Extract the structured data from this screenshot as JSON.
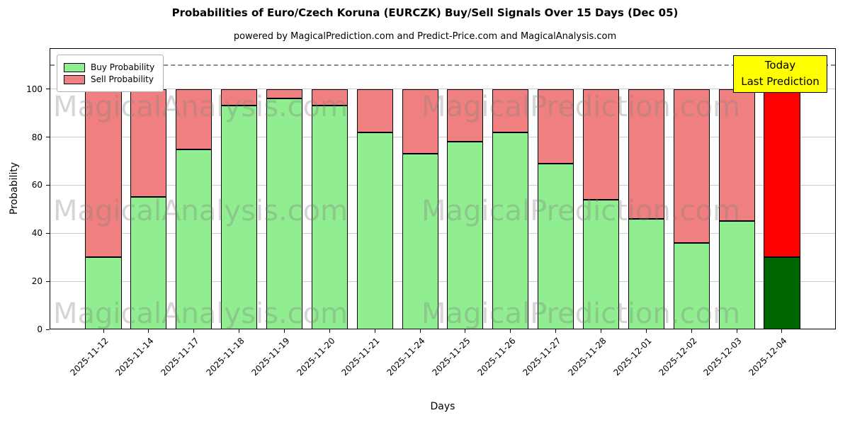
{
  "title": "Probabilities of Euro/Czech Koruna (EURCZK) Buy/Sell Signals Over 15 Days (Dec 05)",
  "subtitle": "powered by MagicalPrediction.com and Predict-Price.com and MagicalAnalysis.com",
  "legend": {
    "buy": "Buy Probability",
    "sell": "Sell Probability"
  },
  "today_box": {
    "line1": "Today",
    "line2": "Last Prediction",
    "bg": "#ffff00",
    "border": "#000000"
  },
  "watermarks": [
    "MagicalAnalysis.com",
    "MagicalPrediction.com"
  ],
  "chart_data": {
    "type": "bar",
    "stacked": true,
    "title": "Probabilities of Euro/Czech Koruna (EURCZK) Buy/Sell Signals Over 15 Days (Dec 05)",
    "xlabel": "Days",
    "ylabel": "Probability",
    "categories": [
      "2025-11-12",
      "2025-11-14",
      "2025-11-17",
      "2025-11-18",
      "2025-11-19",
      "2025-11-20",
      "2025-11-21",
      "2025-11-24",
      "2025-11-25",
      "2025-11-26",
      "2025-11-27",
      "2025-11-28",
      "2025-12-01",
      "2025-12-02",
      "2025-12-03",
      "2025-12-04"
    ],
    "series": [
      {
        "name": "Buy Probability",
        "color": "#90ee90",
        "values": [
          30,
          55,
          75,
          93,
          96,
          93,
          82,
          73,
          78,
          82,
          69,
          54,
          46,
          36,
          45,
          30
        ]
      },
      {
        "name": "Sell Probability",
        "color": "#f08080",
        "values": [
          70,
          45,
          25,
          7,
          4,
          7,
          18,
          27,
          22,
          18,
          31,
          46,
          54,
          64,
          55,
          70
        ]
      }
    ],
    "today_colors": {
      "buy": "#006400",
      "sell": "#ff0000"
    },
    "bar_edge_color": "#000000",
    "grid": true,
    "grid_color": "#cccccc",
    "yticks": [
      0,
      20,
      40,
      60,
      80,
      100
    ],
    "ylim": [
      0,
      117
    ],
    "dashed_line_y": 110,
    "legend_position": "upper-left"
  }
}
